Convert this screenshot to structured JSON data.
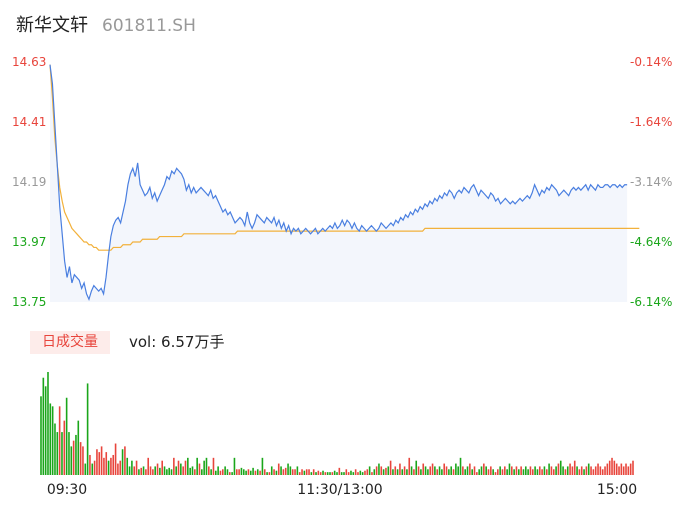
{
  "header": {
    "stock_name": "新华文轩",
    "stock_code": "601811.SH"
  },
  "volume_panel": {
    "tag_label": "日成交量",
    "summary": "vol: 6.57万手"
  },
  "colors": {
    "up": "#e8453c",
    "down": "#1aa61a",
    "price_line": "#4a7fe0",
    "avg_line": "#f2b13b",
    "area_fill": "#f3f6fc",
    "neutral": "#999999"
  },
  "chart_data": [
    {
      "type": "line",
      "title": "",
      "y_ticks_left": [
        "14.63",
        "14.41",
        "14.19",
        "13.97",
        "13.75"
      ],
      "y_ticks_right": [
        "-0.14%",
        "-1.64%",
        "-3.14%",
        "-4.64%",
        "-6.14%"
      ],
      "ylim": [
        13.75,
        14.63
      ],
      "x_points": 240,
      "series": [
        {
          "role": "price",
          "values": [
            14.62,
            14.55,
            14.4,
            14.25,
            14.1,
            14.0,
            13.9,
            13.84,
            13.88,
            13.82,
            13.85,
            13.84,
            13.83,
            13.8,
            13.82,
            13.78,
            13.76,
            13.79,
            13.81,
            13.8,
            13.79,
            13.8,
            13.78,
            13.84,
            13.92,
            13.99,
            14.03,
            14.05,
            14.06,
            14.04,
            14.08,
            14.12,
            14.18,
            14.22,
            14.24,
            14.21,
            14.26,
            14.18,
            14.16,
            14.14,
            14.15,
            14.17,
            14.13,
            14.15,
            14.12,
            14.14,
            14.16,
            14.18,
            14.21,
            14.2,
            14.23,
            14.22,
            14.24,
            14.23,
            14.22,
            14.2,
            14.16,
            14.18,
            14.15,
            14.17,
            14.15,
            14.16,
            14.17,
            14.16,
            14.15,
            14.14,
            14.16,
            14.13,
            14.14,
            14.12,
            14.1,
            14.08,
            14.09,
            14.07,
            14.08,
            14.06,
            14.04,
            14.05,
            14.06,
            14.05,
            14.03,
            14.08,
            14.04,
            14.02,
            14.04,
            14.07,
            14.06,
            14.05,
            14.04,
            14.06,
            14.05,
            14.04,
            14.06,
            14.03,
            14.05,
            14.02,
            14.04,
            14.01,
            14.03,
            14.0,
            14.02,
            14.01,
            14.02,
            14.0,
            14.01,
            14.02,
            14.01,
            14.0,
            14.01,
            14.02,
            14.0,
            14.01,
            14.02,
            14.01,
            14.02,
            14.03,
            14.02,
            14.04,
            14.02,
            14.03,
            14.05,
            14.03,
            14.05,
            14.04,
            14.02,
            14.04,
            14.02,
            14.01,
            14.03,
            14.02,
            14.01,
            14.02,
            14.03,
            14.02,
            14.01,
            14.02,
            14.04,
            14.03,
            14.02,
            14.03,
            14.04,
            14.03,
            14.05,
            14.04,
            14.06,
            14.05,
            14.07,
            14.06,
            14.08,
            14.07,
            14.09,
            14.08,
            14.1,
            14.09,
            14.11,
            14.1,
            14.12,
            14.11,
            14.13,
            14.12,
            14.14,
            14.13,
            14.15,
            14.14,
            14.16,
            14.15,
            14.13,
            14.15,
            14.16,
            14.15,
            14.17,
            14.16,
            14.15,
            14.17,
            14.18,
            14.16,
            14.14,
            14.16,
            14.15,
            14.14,
            14.13,
            14.15,
            14.14,
            14.12,
            14.13,
            14.11,
            14.12,
            14.13,
            14.12,
            14.11,
            14.12,
            14.11,
            14.12,
            14.13,
            14.12,
            14.13,
            14.14,
            14.13,
            14.15,
            14.18,
            14.16,
            14.14,
            14.16,
            14.15,
            14.17,
            14.16,
            14.18,
            14.17,
            14.16,
            14.14,
            14.15,
            14.16,
            14.15,
            14.14,
            14.16,
            14.17,
            14.16,
            14.17,
            14.16,
            14.17,
            14.18,
            14.16,
            14.18,
            14.17,
            14.16,
            14.18,
            14.17,
            14.17,
            14.18,
            14.18,
            14.17,
            14.18,
            14.18,
            14.17,
            14.18,
            14.17,
            14.18,
            14.18
          ]
        },
        {
          "role": "average",
          "values": [
            14.62,
            14.5,
            14.35,
            14.25,
            14.17,
            14.12,
            14.08,
            14.06,
            14.04,
            14.02,
            14.01,
            14.0,
            13.99,
            13.98,
            13.97,
            13.97,
            13.96,
            13.96,
            13.95,
            13.95,
            13.94,
            13.94,
            13.94,
            13.94,
            13.94,
            13.94,
            13.95,
            13.95,
            13.95,
            13.95,
            13.96,
            13.96,
            13.96,
            13.96,
            13.97,
            13.97,
            13.97,
            13.97,
            13.98,
            13.98,
            13.98,
            13.98,
            13.98,
            13.98,
            13.98,
            13.99,
            13.99,
            13.99,
            13.99,
            13.99,
            13.99,
            13.99,
            13.99,
            13.99,
            13.99,
            14.0,
            14.0,
            14.0,
            14.0,
            14.0,
            14.0,
            14.0,
            14.0,
            14.0,
            14.0,
            14.0,
            14.0,
            14.0,
            14.0,
            14.0,
            14.0,
            14.0,
            14.0,
            14.0,
            14.0,
            14.0,
            14.0,
            14.01,
            14.01,
            14.01,
            14.01,
            14.01,
            14.01,
            14.01,
            14.01,
            14.01,
            14.01,
            14.01,
            14.01,
            14.01,
            14.01,
            14.01,
            14.01,
            14.01,
            14.01,
            14.01,
            14.01,
            14.01,
            14.01,
            14.01,
            14.01,
            14.01,
            14.01,
            14.01,
            14.01,
            14.01,
            14.01,
            14.01,
            14.01,
            14.01,
            14.01,
            14.01,
            14.01,
            14.01,
            14.01,
            14.01,
            14.01,
            14.01,
            14.01,
            14.01,
            14.01,
            14.01,
            14.01,
            14.01,
            14.01,
            14.01,
            14.01,
            14.01,
            14.01,
            14.01,
            14.01,
            14.01,
            14.01,
            14.01,
            14.01,
            14.01,
            14.01,
            14.01,
            14.01,
            14.01,
            14.01,
            14.01,
            14.01,
            14.01,
            14.01,
            14.01,
            14.01,
            14.01,
            14.01,
            14.01,
            14.01,
            14.01,
            14.01,
            14.01,
            14.02,
            14.02,
            14.02,
            14.02,
            14.02,
            14.02,
            14.02,
            14.02,
            14.02,
            14.02,
            14.02,
            14.02,
            14.02,
            14.02,
            14.02,
            14.02,
            14.02,
            14.02,
            14.02,
            14.02,
            14.02,
            14.02,
            14.02,
            14.02,
            14.02,
            14.02,
            14.02,
            14.02,
            14.02,
            14.02,
            14.02,
            14.02,
            14.02,
            14.02,
            14.02,
            14.02,
            14.02,
            14.02,
            14.02,
            14.02,
            14.02,
            14.02,
            14.02,
            14.02,
            14.02,
            14.02,
            14.02,
            14.02,
            14.02,
            14.02,
            14.02,
            14.02,
            14.02,
            14.02,
            14.02,
            14.02,
            14.02,
            14.02,
            14.02,
            14.02,
            14.02,
            14.02,
            14.02,
            14.02,
            14.02,
            14.02,
            14.02,
            14.02,
            14.02,
            14.02,
            14.02,
            14.02,
            14.02,
            14.02,
            14.02,
            14.02,
            14.02,
            14.02,
            14.02,
            14.02,
            14.02,
            14.02,
            14.02,
            14.02,
            14.02,
            14.02,
            14.02,
            14.02,
            14.02
          ]
        }
      ]
    },
    {
      "type": "bar",
      "x_ticks": [
        "09:30",
        "11:30/13:00",
        "15:00"
      ],
      "series": [
        {
          "role": "volume",
          "values": [
            0.55,
            0.68,
            0.62,
            0.72,
            0.5,
            0.48,
            0.36,
            0.3,
            0.48,
            0.3,
            0.38,
            0.54,
            0.3,
            0.2,
            0.24,
            0.28,
            0.38,
            0.23,
            0.2,
            0.08,
            0.64,
            0.14,
            0.08,
            0.1,
            0.18,
            0.16,
            0.2,
            0.12,
            0.16,
            0.1,
            0.12,
            0.14,
            0.22,
            0.08,
            0.1,
            0.18,
            0.2,
            0.12,
            0.06,
            0.1,
            0.06,
            0.1,
            0.04,
            0.05,
            0.06,
            0.04,
            0.12,
            0.06,
            0.04,
            0.06,
            0.08,
            0.05,
            0.1,
            0.06,
            0.04,
            0.05,
            0.04,
            0.12,
            0.06,
            0.1,
            0.08,
            0.06,
            0.1,
            0.12,
            0.05,
            0.06,
            0.04,
            0.12,
            0.08,
            0.04,
            0.1,
            0.12,
            0.06,
            0.04,
            0.12,
            0.03,
            0.06,
            0.03,
            0.04,
            0.06,
            0.04,
            0.02,
            0.02,
            0.12,
            0.04,
            0.04,
            0.05,
            0.04,
            0.03,
            0.04,
            0.03,
            0.05,
            0.03,
            0.04,
            0.03,
            0.12,
            0.04,
            0.02,
            0.02,
            0.06,
            0.04,
            0.03,
            0.08,
            0.06,
            0.04,
            0.05,
            0.08,
            0.06,
            0.04,
            0.04,
            0.06,
            0.02,
            0.04,
            0.03,
            0.04,
            0.04,
            0.02,
            0.04,
            0.02,
            0.03,
            0.02,
            0.03,
            0.02,
            0.02,
            0.02,
            0.02,
            0.03,
            0.02,
            0.05,
            0.02,
            0.02,
            0.04,
            0.02,
            0.03,
            0.02,
            0.04,
            0.02,
            0.03,
            0.02,
            0.03,
            0.04,
            0.06,
            0.02,
            0.04,
            0.06,
            0.08,
            0.06,
            0.04,
            0.05,
            0.06,
            0.1,
            0.04,
            0.06,
            0.04,
            0.08,
            0.04,
            0.06,
            0.04,
            0.12,
            0.06,
            0.04,
            0.1,
            0.06,
            0.04,
            0.08,
            0.06,
            0.04,
            0.06,
            0.08,
            0.06,
            0.04,
            0.06,
            0.04,
            0.08,
            0.06,
            0.04,
            0.06,
            0.04,
            0.08,
            0.06,
            0.12,
            0.06,
            0.04,
            0.06,
            0.08,
            0.04,
            0.06,
            0.02,
            0.04,
            0.06,
            0.08,
            0.06,
            0.04,
            0.06,
            0.04,
            0.02,
            0.04,
            0.06,
            0.04,
            0.06,
            0.04,
            0.08,
            0.06,
            0.04,
            0.06,
            0.04,
            0.06,
            0.04,
            0.06,
            0.04,
            0.06,
            0.04,
            0.06,
            0.04,
            0.06,
            0.04,
            0.06,
            0.04,
            0.08,
            0.06,
            0.04,
            0.06,
            0.08,
            0.1,
            0.06,
            0.04,
            0.06,
            0.08,
            0.06,
            0.1,
            0.06,
            0.04,
            0.06,
            0.04,
            0.06,
            0.08,
            0.06,
            0.04,
            0.06,
            0.08,
            0.06,
            0.04,
            0.06,
            0.08,
            0.1,
            0.12,
            0.1,
            0.08,
            0.06,
            0.08,
            0.06,
            0.08,
            0.06,
            0.08,
            0.1
          ]
        }
      ],
      "bar_color_rule": "red when price up vs previous minute, green when down"
    }
  ]
}
